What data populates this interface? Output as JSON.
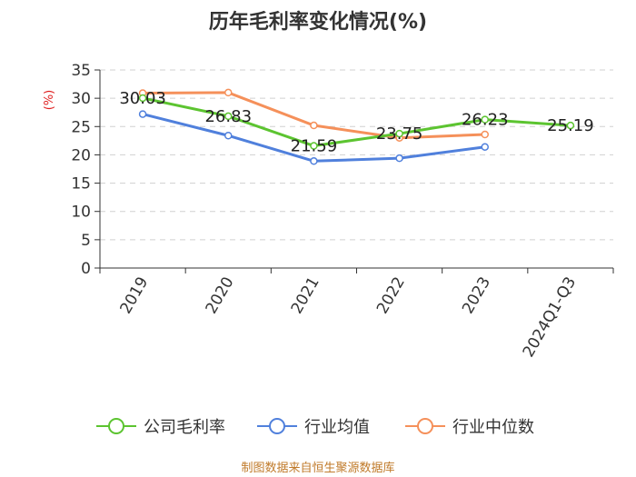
{
  "chart_data": {
    "type": "line",
    "title": "历年毛利率变化情况(%)",
    "unit_label": "(%)",
    "categories": [
      "2019",
      "2020",
      "2021",
      "2022",
      "2023",
      "2024Q1-Q3"
    ],
    "ylim": [
      0,
      35
    ],
    "yticks": [
      0,
      5,
      10,
      15,
      20,
      25,
      30,
      35
    ],
    "grid": true,
    "legend_position": "bottom",
    "series": [
      {
        "name": "公司毛利率",
        "color": "#5cc430",
        "values": [
          30.03,
          26.83,
          21.59,
          23.75,
          26.23,
          25.19
        ],
        "labels": [
          "30.03",
          "26.83",
          "21.59",
          "23.75",
          "26.23",
          "25.19"
        ]
      },
      {
        "name": "行业均值",
        "color": "#5080dc",
        "values": [
          27.2,
          23.4,
          18.9,
          19.4,
          21.4,
          null
        ]
      },
      {
        "name": "行业中位数",
        "color": "#f5905a",
        "values": [
          30.9,
          31.0,
          25.2,
          23.0,
          23.6,
          null
        ]
      }
    ],
    "source": "制图数据来自恒生聚源数据库"
  }
}
